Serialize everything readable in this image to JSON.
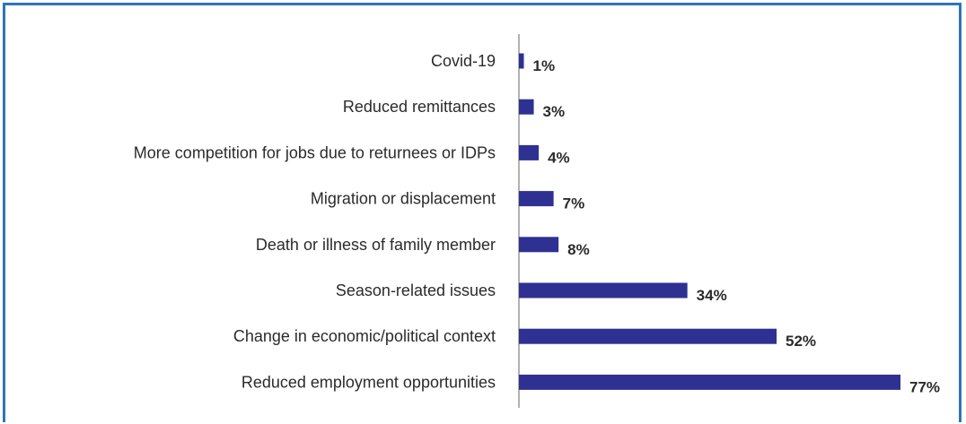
{
  "chart_data": {
    "type": "bar",
    "orientation": "horizontal",
    "categories": [
      "Covid-19",
      "Reduced remittances",
      "More competition for jobs due to returnees or IDPs",
      "Migration or displacement",
      "Death or illness of family member",
      "Season-related issues",
      "Change in economic/political context",
      "Reduced employment opportunities"
    ],
    "values": [
      1,
      3,
      4,
      7,
      8,
      34,
      52,
      77
    ],
    "value_labels": [
      "1%",
      "3%",
      "4%",
      "7%",
      "8%",
      "34%",
      "52%",
      "77%"
    ],
    "unit": "%",
    "xlim": [
      0,
      77
    ],
    "grid": false,
    "legend": "none",
    "colors": {
      "bar": "#2e3192",
      "axis": "#666666",
      "frame": "#2e75b6",
      "text": "#2b2b2b"
    }
  }
}
